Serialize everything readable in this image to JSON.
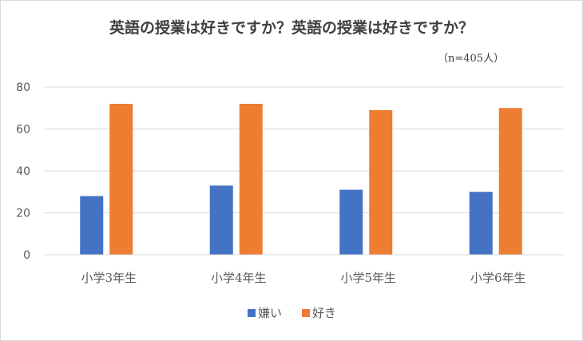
{
  "chart_data": {
    "type": "bar",
    "title": "英語の授業は好きですか？英語の授業は好きですか？",
    "subtitle": "（n=405人）",
    "categories": [
      "小学3年生",
      "小学4年生",
      "小学5年生",
      "小学6年生"
    ],
    "series": [
      {
        "name": "嫌い",
        "color": "#4472c4",
        "values": [
          28,
          33,
          31,
          30
        ]
      },
      {
        "name": "好き",
        "color": "#ed7d31",
        "values": [
          72,
          72,
          69,
          70
        ]
      }
    ],
    "ylim": [
      0,
      80
    ],
    "yticks": [
      0,
      20,
      40,
      60,
      80
    ],
    "grid": true,
    "legend": "bottom"
  }
}
